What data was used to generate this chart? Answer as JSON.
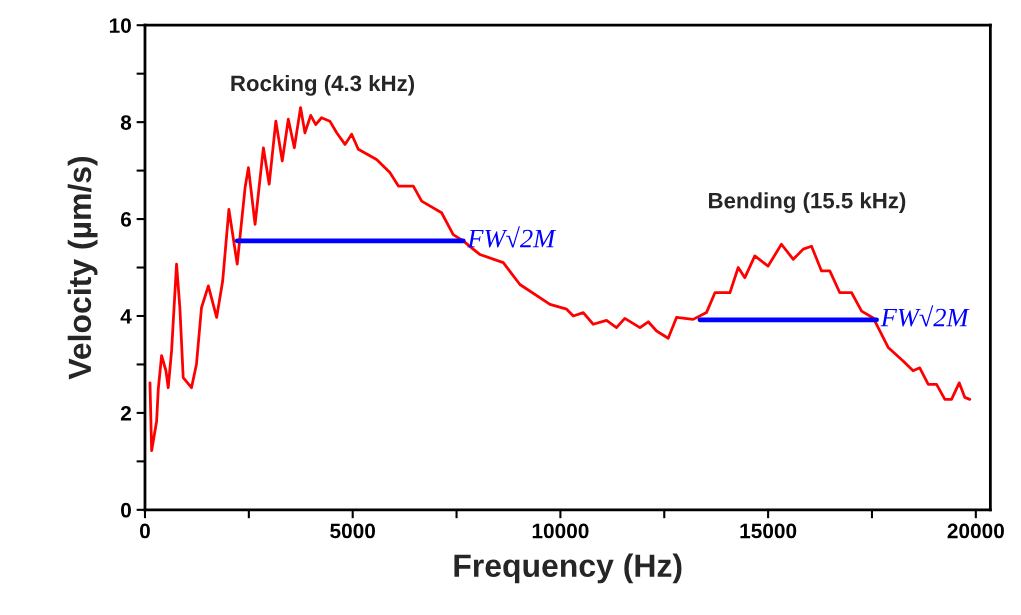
{
  "chart_data": {
    "type": "line",
    "xlabel": "Frequency (Hz)",
    "ylabel": "Velocity (µm/s)",
    "xlim": [
      0,
      20350
    ],
    "ylim": [
      0,
      10
    ],
    "xticks": [
      0,
      {
        "value": 2500,
        "label": null
      },
      5000,
      {
        "value": 7500,
        "label": null
      },
      10000,
      {
        "value": 12500,
        "label": null
      },
      15000,
      {
        "value": 17500,
        "label": null
      },
      20000
    ],
    "yticks": [
      0,
      {
        "value": 1,
        "label": null
      },
      2,
      {
        "value": 3,
        "label": null
      },
      4,
      {
        "value": 5,
        "label": null
      },
      6,
      {
        "value": 7,
        "label": null
      },
      8,
      {
        "value": 9,
        "label": null
      },
      10
    ],
    "grid": false,
    "legend": false,
    "marker": "none",
    "series": [
      {
        "color": "#ff0000",
        "x": [
          120,
          160,
          280,
          320,
          400,
          505,
          560,
          640,
          760,
          840,
          920,
          1120,
          1240,
          1360,
          1525,
          1725,
          1870,
          2020,
          2220,
          2410,
          2490,
          2650,
          2850,
          2990,
          3150,
          3305,
          3450,
          3595,
          3745,
          3850,
          3990,
          4110,
          4250,
          4450,
          4615,
          4815,
          4975,
          5135,
          5575,
          5895,
          6100,
          6460,
          6660,
          7140,
          7420,
          7660,
          7900,
          8060,
          8625,
          9025,
          9750,
          10150,
          10310,
          10550,
          10790,
          11110,
          11350,
          11550,
          11915,
          12115,
          12315,
          12595,
          12795,
          13195,
          13515,
          13720,
          14080,
          14280,
          14440,
          14680,
          15000,
          15320,
          15605,
          15845,
          16045,
          16285,
          16485,
          16725,
          17010,
          17250,
          17530,
          17890,
          18250,
          18490,
          18650,
          18855,
          19055,
          19255,
          19415,
          19600,
          19735,
          19855
        ],
        "values": [
          2.62,
          1.22,
          1.83,
          2.49,
          3.18,
          2.87,
          2.52,
          3.28,
          5.07,
          4.17,
          2.73,
          2.52,
          3.01,
          4.17,
          4.62,
          3.97,
          4.72,
          6.2,
          5.07,
          6.65,
          7.06,
          5.89,
          7.47,
          6.72,
          8.02,
          7.2,
          8.06,
          7.47,
          8.3,
          7.78,
          8.14,
          7.95,
          8.09,
          8.02,
          7.78,
          7.54,
          7.75,
          7.44,
          7.23,
          6.96,
          6.68,
          6.68,
          6.37,
          6.13,
          5.68,
          5.55,
          5.38,
          5.27,
          5.1,
          4.65,
          4.24,
          4.14,
          4.0,
          4.07,
          3.83,
          3.91,
          3.76,
          3.95,
          3.76,
          3.88,
          3.69,
          3.54,
          3.97,
          3.93,
          4.07,
          4.48,
          4.48,
          5.0,
          4.79,
          5.24,
          5.03,
          5.48,
          5.17,
          5.38,
          5.44,
          4.93,
          4.93,
          4.48,
          4.48,
          4.1,
          3.96,
          3.35,
          3.07,
          2.87,
          2.93,
          2.59,
          2.59,
          2.28,
          2.28,
          2.62,
          2.32,
          2.28
        ]
      },
      {
        "color": "#0000ff",
        "x": [
          2220,
          7660
        ],
        "values": [
          5.55,
          5.55
        ]
      },
      {
        "color": "#0000ff",
        "x": [
          13360,
          17610
        ],
        "values": [
          3.92,
          3.92
        ]
      }
    ],
    "annotations": [
      "Rocking (4.3 kHz)",
      "Bending (15.5 kHz)",
      {
        "text": "FW√2M",
        "x": 7660,
        "y": 5.55
      },
      {
        "text": "FW√2M",
        "x": 17610,
        "y": 3.92
      }
    ]
  }
}
